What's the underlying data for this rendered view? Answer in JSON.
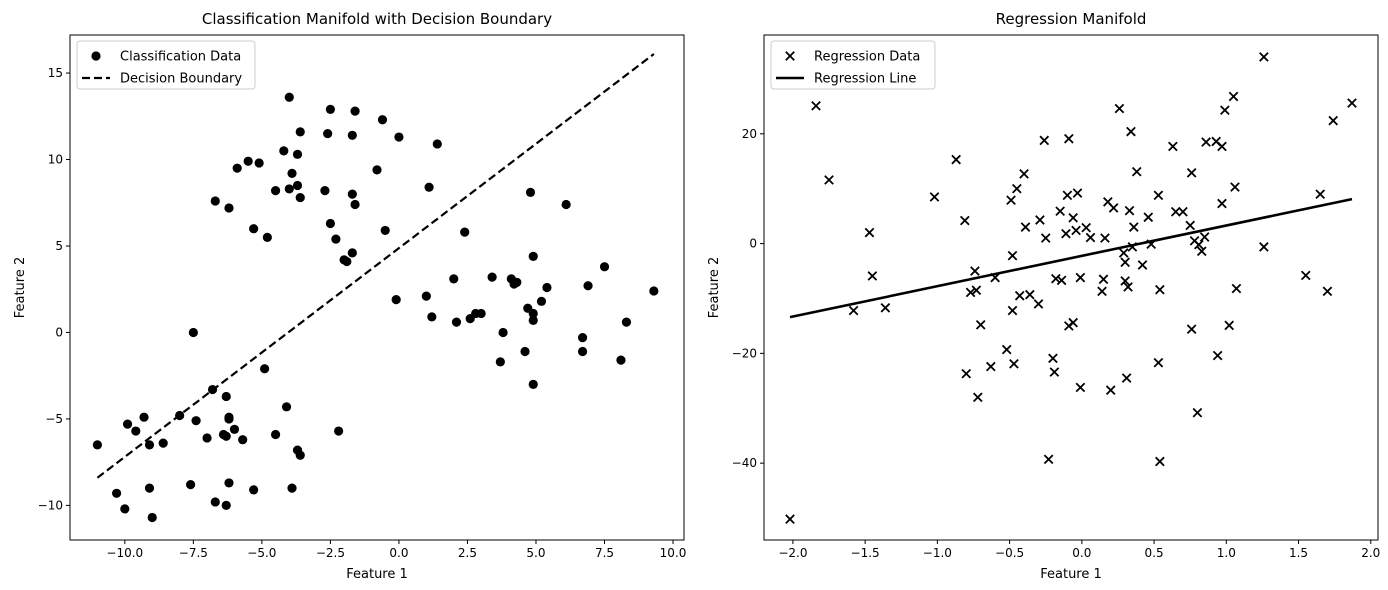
{
  "chart_data": [
    {
      "type": "scatter",
      "title": "Classification Manifold with Decision Boundary",
      "xlabel": "Feature 1",
      "ylabel": "Feature 2",
      "xlim": [
        -12.0,
        10.4
      ],
      "ylim": [
        -12.0,
        17.2
      ],
      "xticks": [
        -10.0,
        -7.5,
        -5.0,
        -2.5,
        0.0,
        2.5,
        5.0,
        7.5,
        10.0
      ],
      "xtick_labels": [
        "−10.0",
        "−7.5",
        "−5.0",
        "−2.5",
        "0.0",
        "2.5",
        "5.0",
        "7.5",
        "10.0"
      ],
      "yticks": [
        -10,
        -5,
        0,
        5,
        10,
        15
      ],
      "ytick_labels": [
        "−10",
        "−5",
        "0",
        "5",
        "10",
        "15"
      ],
      "legend": {
        "position": "upper-left",
        "entries": [
          "Classification Data",
          "Decision Boundary"
        ]
      },
      "series": [
        {
          "name": "Classification Data",
          "kind": "points",
          "marker": "circle",
          "color": "#000000",
          "points": [
            [
              -11.0,
              -6.5
            ],
            [
              -10.3,
              -9.3
            ],
            [
              -10.0,
              -10.2
            ],
            [
              -9.9,
              -5.3
            ],
            [
              -9.6,
              -5.7
            ],
            [
              -9.3,
              -4.9
            ],
            [
              -9.1,
              -9.0
            ],
            [
              -9.1,
              -6.5
            ],
            [
              -9.0,
              -10.7
            ],
            [
              -8.6,
              -6.4
            ],
            [
              -8.0,
              -4.8
            ],
            [
              -7.6,
              -8.8
            ],
            [
              -7.5,
              0.0
            ],
            [
              -7.4,
              -5.1
            ],
            [
              -7.0,
              -6.1
            ],
            [
              -6.8,
              -3.3
            ],
            [
              -6.7,
              -9.8
            ],
            [
              -6.4,
              -5.9
            ],
            [
              -6.3,
              -3.7
            ],
            [
              -6.3,
              -6.0
            ],
            [
              -6.2,
              -4.9
            ],
            [
              -6.2,
              -5.0
            ],
            [
              -6.2,
              -8.7
            ],
            [
              -6.0,
              -5.6
            ],
            [
              -6.3,
              -10.0
            ],
            [
              -5.7,
              -6.2
            ],
            [
              -5.3,
              -9.1
            ],
            [
              -4.9,
              -2.1
            ],
            [
              -4.5,
              -5.9
            ],
            [
              -4.1,
              -4.3
            ],
            [
              -3.9,
              -9.0
            ],
            [
              -3.7,
              -6.8
            ],
            [
              -3.6,
              -7.1
            ],
            [
              -2.2,
              -5.7
            ],
            [
              -6.7,
              7.6
            ],
            [
              -6.2,
              7.2
            ],
            [
              -5.9,
              9.5
            ],
            [
              -5.5,
              9.9
            ],
            [
              -5.3,
              6.0
            ],
            [
              -5.1,
              9.8
            ],
            [
              -4.8,
              5.5
            ],
            [
              -4.5,
              8.2
            ],
            [
              -4.2,
              10.5
            ],
            [
              -4.0,
              8.3
            ],
            [
              -4.0,
              13.6
            ],
            [
              -3.9,
              9.2
            ],
            [
              -3.7,
              8.5
            ],
            [
              -3.7,
              10.3
            ],
            [
              -3.6,
              11.6
            ],
            [
              -3.6,
              7.8
            ],
            [
              -2.7,
              8.2
            ],
            [
              -2.6,
              11.5
            ],
            [
              -2.5,
              12.9
            ],
            [
              -2.5,
              6.3
            ],
            [
              -2.3,
              5.4
            ],
            [
              -2.0,
              4.2
            ],
            [
              -1.9,
              4.1
            ],
            [
              -1.7,
              4.6
            ],
            [
              -1.7,
              11.4
            ],
            [
              -1.7,
              8.0
            ],
            [
              -1.6,
              12.8
            ],
            [
              -1.6,
              7.4
            ],
            [
              -0.8,
              9.4
            ],
            [
              -0.6,
              12.3
            ],
            [
              -0.5,
              5.9
            ],
            [
              0.0,
              11.3
            ],
            [
              -0.1,
              1.9
            ],
            [
              1.0,
              2.1
            ],
            [
              1.1,
              8.4
            ],
            [
              1.2,
              0.9
            ],
            [
              1.4,
              10.9
            ],
            [
              2.0,
              3.1
            ],
            [
              2.1,
              0.6
            ],
            [
              2.4,
              5.8
            ],
            [
              2.6,
              0.8
            ],
            [
              2.8,
              1.1
            ],
            [
              3.0,
              1.1
            ],
            [
              3.4,
              3.2
            ],
            [
              3.7,
              -1.7
            ],
            [
              3.8,
              0.0
            ],
            [
              4.1,
              3.1
            ],
            [
              4.2,
              2.8
            ],
            [
              4.3,
              2.9
            ],
            [
              4.6,
              -1.1
            ],
            [
              4.7,
              1.4
            ],
            [
              4.8,
              8.1
            ],
            [
              4.9,
              4.4
            ],
            [
              4.9,
              1.1
            ],
            [
              4.9,
              0.7
            ],
            [
              4.9,
              -3.0
            ],
            [
              5.2,
              1.8
            ],
            [
              5.4,
              2.6
            ],
            [
              6.1,
              7.4
            ],
            [
              6.7,
              -0.3
            ],
            [
              6.7,
              -1.1
            ],
            [
              6.9,
              2.7
            ],
            [
              7.5,
              3.8
            ],
            [
              8.1,
              -1.6
            ],
            [
              8.3,
              0.6
            ],
            [
              9.3,
              2.4
            ]
          ]
        },
        {
          "name": "Decision Boundary",
          "kind": "line",
          "style": "dashed",
          "color": "#000000",
          "points": [
            [
              -11.0,
              -8.4
            ],
            [
              9.3,
              16.1
            ]
          ]
        }
      ]
    },
    {
      "type": "scatter",
      "title": "Regression Manifold",
      "xlabel": "Feature 1",
      "ylabel": "Feature 2",
      "xlim": [
        -2.2,
        2.05
      ],
      "ylim": [
        -54,
        38
      ],
      "xticks": [
        -2.0,
        -1.5,
        -1.0,
        -0.5,
        0.0,
        0.5,
        1.0,
        1.5,
        2.0
      ],
      "xtick_labels": [
        "−2.0",
        "−1.5",
        "−1.0",
        "−0.5",
        "0.0",
        "0.5",
        "1.0",
        "1.5",
        "2.0"
      ],
      "yticks": [
        -40,
        -20,
        0,
        20
      ],
      "ytick_labels": [
        "−40",
        "−20",
        "0",
        "20"
      ],
      "legend": {
        "position": "upper-left",
        "entries": [
          "Regression Data",
          "Regression Line"
        ]
      },
      "series": [
        {
          "name": "Regression Data",
          "kind": "points",
          "marker": "x",
          "color": "#000000",
          "points": [
            [
              -2.02,
              -50.2
            ],
            [
              -1.84,
              25.1
            ],
            [
              -1.75,
              11.6
            ],
            [
              -1.58,
              -12.2
            ],
            [
              -1.47,
              2.0
            ],
            [
              -1.45,
              -5.9
            ],
            [
              -1.36,
              -11.7
            ],
            [
              -1.02,
              8.5
            ],
            [
              -0.87,
              15.3
            ],
            [
              -0.81,
              4.2
            ],
            [
              -0.8,
              -23.7
            ],
            [
              -0.77,
              -8.9
            ],
            [
              -0.74,
              -5.0
            ],
            [
              -0.73,
              -8.5
            ],
            [
              -0.72,
              -28.0
            ],
            [
              -0.7,
              -14.8
            ],
            [
              -0.63,
              -22.4
            ],
            [
              -0.6,
              -6.2
            ],
            [
              -0.52,
              -19.3
            ],
            [
              -0.49,
              7.9
            ],
            [
              -0.48,
              -2.2
            ],
            [
              -0.48,
              -12.2
            ],
            [
              -0.47,
              -21.9
            ],
            [
              -0.45,
              10.0
            ],
            [
              -0.43,
              -9.5
            ],
            [
              -0.4,
              12.7
            ],
            [
              -0.39,
              3.0
            ],
            [
              -0.36,
              -9.3
            ],
            [
              -0.3,
              -11.0
            ],
            [
              -0.29,
              4.3
            ],
            [
              -0.26,
              18.8
            ],
            [
              -0.25,
              1.0
            ],
            [
              -0.23,
              -39.3
            ],
            [
              -0.2,
              -20.9
            ],
            [
              -0.19,
              -23.4
            ],
            [
              -0.18,
              -6.4
            ],
            [
              -0.15,
              5.9
            ],
            [
              -0.14,
              -6.7
            ],
            [
              -0.11,
              1.8
            ],
            [
              -0.1,
              8.8
            ],
            [
              -0.09,
              19.1
            ],
            [
              -0.09,
              -15.0
            ],
            [
              -0.06,
              4.7
            ],
            [
              -0.06,
              -14.4
            ],
            [
              -0.04,
              2.4
            ],
            [
              -0.03,
              9.2
            ],
            [
              -0.01,
              -6.2
            ],
            [
              -0.01,
              -26.2
            ],
            [
              0.03,
              2.9
            ],
            [
              0.06,
              1.1
            ],
            [
              0.14,
              -8.7
            ],
            [
              0.15,
              -6.5
            ],
            [
              0.16,
              1.0
            ],
            [
              0.18,
              7.6
            ],
            [
              0.2,
              -26.7
            ],
            [
              0.22,
              6.5
            ],
            [
              0.26,
              24.6
            ],
            [
              0.29,
              -1.7
            ],
            [
              0.3,
              -6.8
            ],
            [
              0.3,
              -3.4
            ],
            [
              0.31,
              -24.5
            ],
            [
              0.32,
              -7.9
            ],
            [
              0.33,
              6.0
            ],
            [
              0.34,
              20.4
            ],
            [
              0.35,
              -0.6
            ],
            [
              0.36,
              3.0
            ],
            [
              0.38,
              13.1
            ],
            [
              0.42,
              -3.9
            ],
            [
              0.46,
              4.8
            ],
            [
              0.48,
              -0.1
            ],
            [
              0.53,
              8.8
            ],
            [
              0.53,
              -21.7
            ],
            [
              0.54,
              -8.4
            ],
            [
              0.54,
              -39.7
            ],
            [
              0.63,
              17.7
            ],
            [
              0.65,
              5.8
            ],
            [
              0.7,
              5.8
            ],
            [
              0.75,
              3.3
            ],
            [
              0.76,
              12.9
            ],
            [
              0.76,
              -15.6
            ],
            [
              0.78,
              0.5
            ],
            [
              0.8,
              -30.8
            ],
            [
              0.81,
              -0.2
            ],
            [
              0.83,
              -1.4
            ],
            [
              0.85,
              1.2
            ],
            [
              0.86,
              18.5
            ],
            [
              0.93,
              18.6
            ],
            [
              0.94,
              -20.4
            ],
            [
              0.97,
              7.3
            ],
            [
              0.97,
              17.7
            ],
            [
              0.99,
              24.3
            ],
            [
              1.02,
              -14.9
            ],
            [
              1.05,
              26.8
            ],
            [
              1.06,
              10.3
            ],
            [
              1.07,
              -8.2
            ],
            [
              1.26,
              34.0
            ],
            [
              1.26,
              -0.6
            ],
            [
              1.55,
              -5.8
            ],
            [
              1.65,
              9.0
            ],
            [
              1.7,
              -8.7
            ],
            [
              1.74,
              22.4
            ],
            [
              1.87,
              25.6
            ]
          ]
        },
        {
          "name": "Regression Line",
          "kind": "line",
          "style": "solid",
          "color": "#000000",
          "points": [
            [
              -2.02,
              -13.4
            ],
            [
              1.87,
              8.1
            ]
          ]
        }
      ]
    }
  ]
}
